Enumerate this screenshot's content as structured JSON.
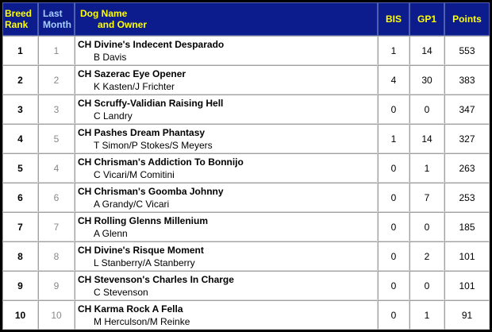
{
  "header": {
    "breed_rank": [
      "Breed",
      "Rank"
    ],
    "last_month": [
      "Last",
      "Month"
    ],
    "dog": [
      "Dog Name",
      "and Owner"
    ],
    "bis": "BIS",
    "gp1": "GP1",
    "points": "Points"
  },
  "rows": [
    {
      "rank": "1",
      "last": "1",
      "name": "CH Divine's Indecent Desparado",
      "owner": "B Davis",
      "bis": "1",
      "gp1": "14",
      "points": "553"
    },
    {
      "rank": "2",
      "last": "2",
      "name": "CH Sazerac Eye Opener",
      "owner": "K Kasten/J Frichter",
      "bis": "4",
      "gp1": "30",
      "points": "383"
    },
    {
      "rank": "3",
      "last": "3",
      "name": "CH Scruffy-Validian Raising Hell",
      "owner": "C Landry",
      "bis": "0",
      "gp1": "0",
      "points": "347"
    },
    {
      "rank": "4",
      "last": "5",
      "name": "CH Pashes Dream Phantasy",
      "owner": "T Simon/P Stokes/S Meyers",
      "bis": "1",
      "gp1": "14",
      "points": "327"
    },
    {
      "rank": "5",
      "last": "4",
      "name": "CH Chrisman's Addiction To Bonnijo",
      "owner": "C Vicari/M Comitini",
      "bis": "0",
      "gp1": "1",
      "points": "263"
    },
    {
      "rank": "6",
      "last": "6",
      "name": "CH Chrisman's Goomba Johnny",
      "owner": "A Grandy/C Vicari",
      "bis": "0",
      "gp1": "7",
      "points": "253"
    },
    {
      "rank": "7",
      "last": "7",
      "name": "CH Rolling Glenns Millenium",
      "owner": "A Glenn",
      "bis": "0",
      "gp1": "0",
      "points": "185"
    },
    {
      "rank": "8",
      "last": "8",
      "name": "CH Divine's Risque Moment",
      "owner": "L Stanberry/A Stanberry",
      "bis": "0",
      "gp1": "2",
      "points": "101"
    },
    {
      "rank": "9",
      "last": "9",
      "name": "CH Stevenson's Charles In Charge",
      "owner": "C Stevenson",
      "bis": "0",
      "gp1": "0",
      "points": "101"
    },
    {
      "rank": "10",
      "last": "10",
      "name": "CH Karma Rock A Fella",
      "owner": "M Herculson/M Reinke",
      "bis": "0",
      "gp1": "1",
      "points": "91"
    }
  ]
}
